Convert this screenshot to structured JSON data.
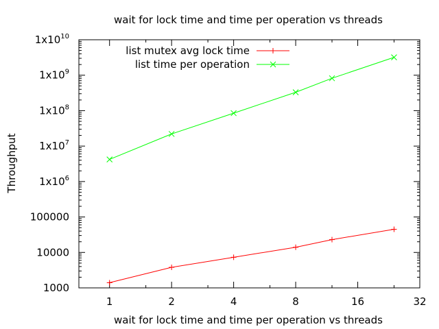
{
  "chart_data": {
    "type": "line",
    "title": "wait for lock time and time per operation vs threads",
    "xlabel": "wait for lock time and time per operation vs threads",
    "ylabel": "Throughput",
    "x_scale": "log2",
    "y_scale": "log10",
    "xlim": [
      0.71,
      32
    ],
    "ylim": [
      1000,
      10000000000
    ],
    "x_ticks": [
      1,
      2,
      4,
      8,
      16,
      32
    ],
    "x_tick_labels": [
      "1",
      "2",
      "4",
      "8",
      "16",
      "32"
    ],
    "y_ticks": [
      1000,
      10000,
      100000,
      1000000,
      10000000,
      100000000,
      1000000000,
      10000000000
    ],
    "y_tick_labels": [
      {
        "base": "1000",
        "exp": ""
      },
      {
        "base": "10000",
        "exp": ""
      },
      {
        "base": "100000",
        "exp": ""
      },
      {
        "base": "1x10",
        "exp": "6"
      },
      {
        "base": "1x10",
        "exp": "7"
      },
      {
        "base": "1x10",
        "exp": "8"
      },
      {
        "base": "1x10",
        "exp": "9"
      },
      {
        "base": "1x10",
        "exp": "10"
      }
    ],
    "grid": false,
    "legend_position": "top-left",
    "series": [
      {
        "name": "list mutex avg lock time",
        "color": "#ff0000",
        "marker": "plus",
        "x": [
          1,
          2,
          4,
          8,
          12,
          24
        ],
        "y": [
          1400,
          3800,
          7300,
          14000,
          23000,
          45000
        ]
      },
      {
        "name": "list time per operation",
        "color": "#00ff00",
        "marker": "cross",
        "x": [
          1,
          2,
          4,
          8,
          12,
          24
        ],
        "y": [
          4200000,
          22000000,
          85000000,
          330000000,
          820000000,
          3200000000
        ]
      }
    ]
  }
}
